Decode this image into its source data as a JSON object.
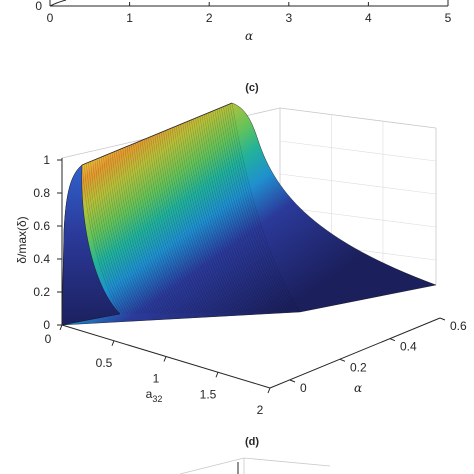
{
  "chart_data": [
    {
      "panel": "top",
      "type": "line",
      "xlabel": "α",
      "x_ticks": [
        "0",
        "1",
        "2",
        "3",
        "4",
        "5"
      ],
      "y_ticks_visible": [
        "0"
      ],
      "xlim": [
        0,
        5
      ],
      "grid": false
    },
    {
      "panel": "c",
      "title": "(c)",
      "type": "surface",
      "xlabel": "a32",
      "xlabel_main": "a",
      "xlabel_sub": "32",
      "ylabel": "α",
      "zlabel": "δ/max(δ)",
      "x_ticks": [
        "0",
        "0.5",
        "1",
        "1.5",
        "2"
      ],
      "y_ticks": [
        "0",
        "0.2",
        "0.4",
        "0.6"
      ],
      "z_ticks": [
        "0",
        "0.2",
        "0.4",
        "0.6",
        "0.8",
        "1"
      ],
      "xlim": [
        0,
        2
      ],
      "ylim": [
        0,
        0.6
      ],
      "zlim": [
        0,
        1
      ],
      "grid": true,
      "colormap": [
        "#1b1f5c",
        "#2b3a9a",
        "#2f5fc8",
        "#1f8fcf",
        "#22b29a",
        "#63c35a",
        "#b8c13a",
        "#e59a30",
        "#f0c83c"
      ],
      "surface_samples": {
        "a32": [
          0.0,
          0.05,
          0.1,
          0.2,
          0.3,
          0.5,
          0.75,
          1.0,
          1.25,
          1.5,
          1.75,
          2.0
        ],
        "alpha_0": [
          0.0,
          0.05,
          0.08,
          0.06,
          0.05,
          0.04,
          0.03,
          0.03,
          0.02,
          0.02,
          0.02,
          0.02
        ],
        "alpha_0_6": [
          0.0,
          0.95,
          1.0,
          0.99,
          0.96,
          0.86,
          0.72,
          0.6,
          0.5,
          0.41,
          0.33,
          0.25
        ]
      }
    },
    {
      "panel": "d",
      "title": "(d)",
      "type": "surface"
    }
  ]
}
